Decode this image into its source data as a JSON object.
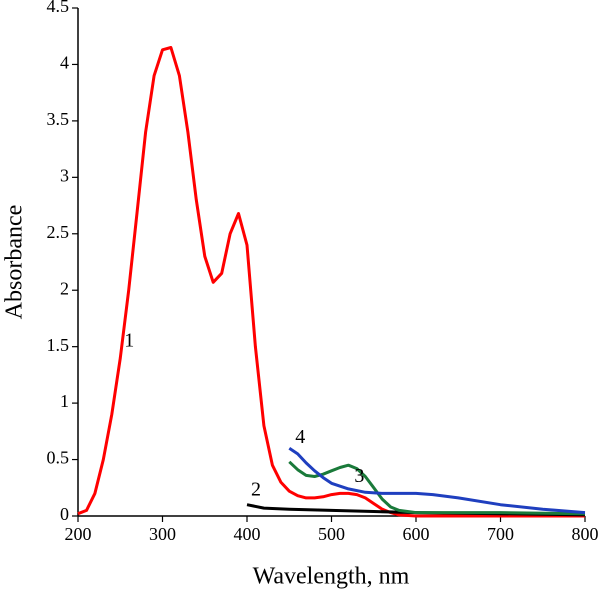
{
  "chart_data": {
    "type": "line",
    "x_label": "Wavelength, nm",
    "y_label": "Absorbance",
    "xlim": [
      200,
      800
    ],
    "xticks": [
      200,
      300,
      400,
      500,
      600,
      700,
      800
    ],
    "ylim": [
      0,
      4.5
    ],
    "yticks": [
      0,
      0.5,
      1,
      1.5,
      2,
      2.5,
      3,
      3.5,
      4,
      4.5
    ],
    "grid": false,
    "series": [
      {
        "name": "1",
        "color": "#ff0000",
        "x": [
          200,
          210,
          220,
          230,
          240,
          250,
          260,
          270,
          280,
          290,
          300,
          310,
          320,
          330,
          340,
          350,
          360,
          370,
          380,
          390,
          400,
          410,
          420,
          430,
          440,
          450,
          460,
          470,
          480,
          490,
          500,
          510,
          520,
          530,
          540,
          550,
          560,
          570,
          580,
          600,
          700,
          800
        ],
        "values": [
          0.02,
          0.05,
          0.2,
          0.5,
          0.9,
          1.4,
          2.0,
          2.7,
          3.4,
          3.9,
          4.13,
          4.15,
          3.9,
          3.4,
          2.8,
          2.3,
          2.07,
          2.15,
          2.5,
          2.68,
          2.4,
          1.5,
          0.8,
          0.45,
          0.3,
          0.22,
          0.18,
          0.16,
          0.16,
          0.17,
          0.19,
          0.2,
          0.2,
          0.19,
          0.16,
          0.11,
          0.06,
          0.03,
          0.01,
          0,
          0,
          0
        ]
      },
      {
        "name": "2",
        "color": "#000000",
        "x": [
          400,
          420,
          450,
          500,
          550,
          600,
          700,
          800
        ],
        "values": [
          0.1,
          0.07,
          0.06,
          0.05,
          0.04,
          0.03,
          0.02,
          0.01
        ]
      },
      {
        "name": "3",
        "color": "#1a7a3a",
        "x": [
          450,
          460,
          470,
          480,
          490,
          500,
          510,
          520,
          530,
          540,
          550,
          560,
          570,
          580,
          600,
          650,
          700,
          800
        ],
        "values": [
          0.48,
          0.41,
          0.36,
          0.35,
          0.37,
          0.4,
          0.43,
          0.45,
          0.42,
          0.35,
          0.25,
          0.15,
          0.08,
          0.05,
          0.03,
          0.03,
          0.03,
          0.02
        ]
      },
      {
        "name": "4",
        "color": "#1f3fbf",
        "x": [
          450,
          460,
          470,
          480,
          490,
          500,
          520,
          540,
          560,
          600,
          620,
          650,
          700,
          750,
          800
        ],
        "values": [
          0.6,
          0.55,
          0.47,
          0.4,
          0.34,
          0.29,
          0.24,
          0.21,
          0.2,
          0.2,
          0.19,
          0.16,
          0.1,
          0.06,
          0.03
        ]
      }
    ]
  }
}
